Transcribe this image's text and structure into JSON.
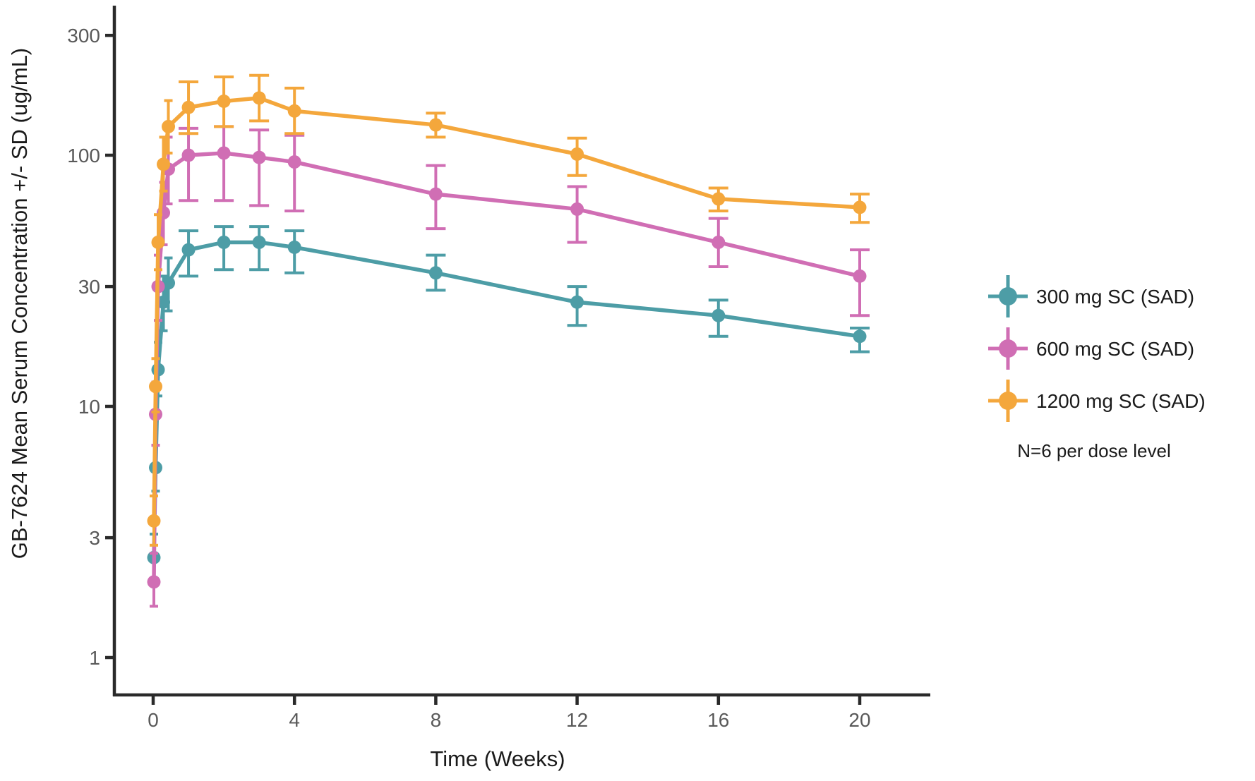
{
  "figure": {
    "background": "#ffffff",
    "axis_color": "#2a2a2a",
    "tick_label_color": "#595959",
    "text_color": "#1a1a1a",
    "note": "N=6 per dose level"
  },
  "chart_data": {
    "type": "line",
    "title": "",
    "xlabel": "Time (Weeks)",
    "ylabel": "GB-7624 Mean Serum Concentration +/- SD (ug/mL)",
    "x_scale": "linear",
    "y_scale": "log10",
    "x_ticks": [
      0,
      4,
      8,
      12,
      16,
      20
    ],
    "y_ticks": [
      1,
      3,
      10,
      30,
      100,
      300
    ],
    "x_range_weeks": [
      -1.1,
      22.1
    ],
    "y_range": [
      0.72,
      395
    ],
    "grid": false,
    "error_bars": "+/- SD",
    "legend_position": "right",
    "x_weeks": [
      0.02,
      0.07,
      0.14,
      0.29,
      0.43,
      1,
      2,
      3,
      4,
      8,
      12,
      16,
      20
    ],
    "series": [
      {
        "name": "300 mg SC (SAD)",
        "color": "#4D9DA6",
        "values": [
          2.5,
          5.7,
          14,
          26,
          31,
          42,
          45,
          45,
          43,
          34,
          26,
          23,
          19
        ],
        "sd_low": [
          2.0,
          4.6,
          11,
          20,
          24,
          33,
          35,
          35,
          34,
          29,
          21,
          19,
          16.5
        ],
        "sd_high": [
          3.1,
          7.0,
          18,
          33,
          39,
          50,
          52,
          52,
          50,
          40,
          30,
          26.5,
          20.5
        ]
      },
      {
        "name": "600 mg SC (SAD)",
        "color": "#D06EB4",
        "values": [
          2.0,
          9.3,
          30,
          59,
          88,
          100,
          102,
          98,
          94,
          70,
          61,
          45,
          33
        ],
        "sd_low": [
          1.6,
          7.0,
          22,
          44,
          64,
          66,
          66,
          63,
          60,
          51,
          45,
          36,
          23
        ],
        "sd_high": [
          2.6,
          12.5,
          40,
          78,
          118,
          128,
          130,
          126,
          120,
          91,
          75,
          56,
          42
        ]
      },
      {
        "name": "1200 mg SC (SAD)",
        "color": "#F4A73C",
        "values": [
          3.5,
          12,
          45,
          92,
          130,
          155,
          164,
          169,
          150,
          132,
          101,
          67,
          62
        ],
        "sd_low": [
          2.8,
          9.5,
          35,
          72,
          102,
          122,
          130,
          137,
          122,
          118,
          83,
          60,
          54
        ],
        "sd_high": [
          4.4,
          15.5,
          58,
          118,
          165,
          196,
          205,
          208,
          185,
          147,
          117,
          74,
          70
        ]
      }
    ]
  }
}
